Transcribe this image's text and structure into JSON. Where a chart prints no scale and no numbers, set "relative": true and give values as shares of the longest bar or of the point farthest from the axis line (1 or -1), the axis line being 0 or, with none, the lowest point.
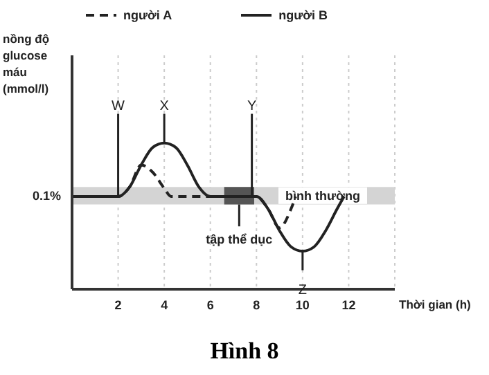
{
  "chart_data": {
    "type": "line",
    "title": "Hình 8",
    "xlabel": "Thời gian (h)",
    "ylabel": "nồng độ glucose máu (mmol/l)",
    "relative": true,
    "xlim": [
      0,
      14
    ],
    "xticks": [
      2,
      4,
      6,
      8,
      10,
      12
    ],
    "grid": "x",
    "legend": "top",
    "marker": "none",
    "series": [
      {
        "name": "người A",
        "color": "#222222",
        "line_style": "dashed",
        "x": [
          0,
          2,
          2.5,
          3,
          3.5,
          4,
          4.3,
          6,
          8,
          8.5,
          9,
          9.5,
          9.7
        ],
        "values": [
          0.634,
          0.634,
          0.7,
          0.85,
          0.8,
          0.69,
          0.634,
          0.634,
          0.634,
          0.55,
          0.42,
          0.55,
          0.634
        ]
      },
      {
        "name": "người B",
        "color": "#222222",
        "line_style": "solid",
        "x": [
          0,
          2,
          2.5,
          3,
          3.5,
          4,
          4.5,
          5,
          5.5,
          6,
          8,
          8.5,
          9,
          9.5,
          10,
          10.5,
          11,
          11.5,
          11.8
        ],
        "values": [
          0.634,
          0.634,
          0.7,
          0.85,
          0.97,
          1,
          0.97,
          0.85,
          0.7,
          0.634,
          0.634,
          0.55,
          0.4,
          0.29,
          0.26,
          0.29,
          0.4,
          0.55,
          0.634
        ]
      }
    ],
    "bands": [
      {
        "axis": "y",
        "from": 0.58,
        "to": 0.7,
        "label": "bình thường",
        "color": "#d4d4d4"
      },
      {
        "axis": "x",
        "from": 6.6,
        "to": 7.9,
        "label": "tập thể dục",
        "color": "#555555"
      }
    ],
    "annotations": [
      {
        "text": "W",
        "x": 2,
        "y": 0.634
      },
      {
        "text": "X",
        "x": 4,
        "y": 1
      },
      {
        "text": "Y",
        "x": 7.8,
        "y": 0.634
      },
      {
        "text": "Z",
        "x": 10,
        "y": 0.26
      },
      "0.1%"
    ]
  }
}
